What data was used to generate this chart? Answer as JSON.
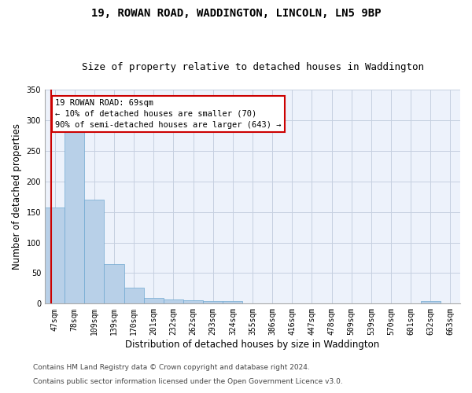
{
  "title": "19, ROWAN ROAD, WADDINGTON, LINCOLN, LN5 9BP",
  "subtitle": "Size of property relative to detached houses in Waddington",
  "xlabel": "Distribution of detached houses by size in Waddington",
  "ylabel": "Number of detached properties",
  "categories": [
    "47sqm",
    "78sqm",
    "109sqm",
    "139sqm",
    "170sqm",
    "201sqm",
    "232sqm",
    "262sqm",
    "293sqm",
    "324sqm",
    "355sqm",
    "386sqm",
    "416sqm",
    "447sqm",
    "478sqm",
    "509sqm",
    "539sqm",
    "570sqm",
    "601sqm",
    "632sqm",
    "663sqm"
  ],
  "values": [
    157,
    285,
    170,
    65,
    26,
    10,
    7,
    6,
    4,
    4,
    0,
    0,
    0,
    0,
    0,
    0,
    0,
    0,
    0,
    4,
    0
  ],
  "bar_color": "#b8d0e8",
  "bar_edge_color": "#6fa8d0",
  "highlight_line_color": "#cc0000",
  "vline_position": -0.17,
  "annotation_text": "19 ROWAN ROAD: 69sqm\n← 10% of detached houses are smaller (70)\n90% of semi-detached houses are larger (643) →",
  "annotation_box_color": "#ffffff",
  "annotation_box_edge_color": "#cc0000",
  "ylim": [
    0,
    350
  ],
  "yticks": [
    0,
    50,
    100,
    150,
    200,
    250,
    300,
    350
  ],
  "footer_line1": "Contains HM Land Registry data © Crown copyright and database right 2024.",
  "footer_line2": "Contains public sector information licensed under the Open Government Licence v3.0.",
  "background_color": "#edf2fb",
  "grid_color": "#c5cfe0",
  "title_fontsize": 10,
  "subtitle_fontsize": 9,
  "axis_label_fontsize": 8.5,
  "tick_fontsize": 7,
  "footer_fontsize": 6.5,
  "annotation_fontsize": 7.5
}
